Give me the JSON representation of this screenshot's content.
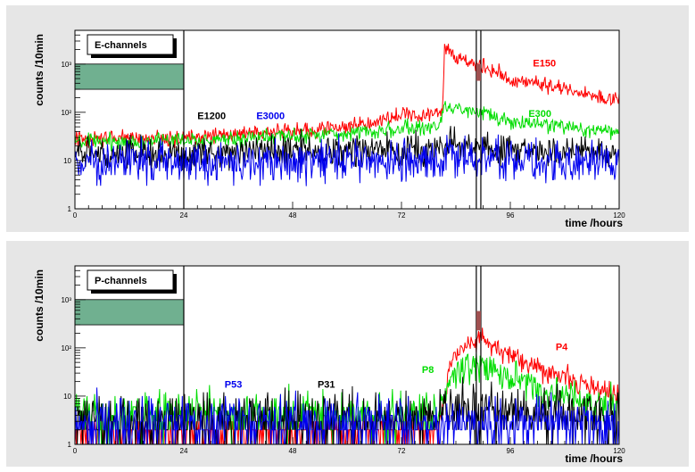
{
  "chart_data": [
    {
      "type": "line",
      "title": "E-channels",
      "xlabel": "time /hours",
      "ylabel": "counts /10min",
      "yscale": "log",
      "xlim": [
        0,
        120
      ],
      "ylim": [
        1,
        5000
      ],
      "xticks": [
        "0",
        "24",
        "48",
        "72",
        "96",
        "120"
      ],
      "yticks": [
        "1",
        "10",
        "10²",
        "10³"
      ],
      "markers": [
        24,
        88.5,
        89.5
      ],
      "shaded_box": {
        "x": [
          0,
          24
        ],
        "y": [
          300,
          1000
        ],
        "color": "#70b090"
      },
      "marker_box": {
        "x": [
          88.5,
          89.5
        ],
        "y": [
          450,
          1000
        ],
        "color": "#a05050"
      },
      "series": [
        {
          "name": "E150",
          "color": "#ff0000",
          "base": [
            [
              0,
              28
            ],
            [
              24,
              30
            ],
            [
              48,
              40
            ],
            [
              60,
              50
            ],
            [
              70,
              80
            ],
            [
              78,
              95
            ],
            [
              81,
              100
            ],
            [
              81.5,
              2200
            ],
            [
              84,
              1500
            ],
            [
              88,
              1000
            ],
            [
              93,
              700
            ],
            [
              96,
              450
            ],
            [
              102,
              400
            ],
            [
              108,
              320
            ],
            [
              114,
              220
            ],
            [
              120,
              180
            ]
          ],
          "noise": 0.08
        },
        {
          "name": "E300",
          "color": "#00dd00",
          "base": [
            [
              0,
              24
            ],
            [
              24,
              26
            ],
            [
              48,
              32
            ],
            [
              60,
              38
            ],
            [
              72,
              45
            ],
            [
              80,
              50
            ],
            [
              81.5,
              140
            ],
            [
              86,
              110
            ],
            [
              90,
              95
            ],
            [
              96,
              60
            ],
            [
              108,
              50
            ],
            [
              120,
              38
            ]
          ],
          "noise": 0.08
        },
        {
          "name": "E1200",
          "color": "#000000",
          "base": [
            [
              0,
              14
            ],
            [
              24,
              14
            ],
            [
              48,
              16
            ],
            [
              72,
              16
            ],
            [
              81,
              16
            ],
            [
              82,
              25
            ],
            [
              86,
              20
            ],
            [
              96,
              16
            ],
            [
              120,
              14
            ]
          ],
          "noise": 0.16
        },
        {
          "name": "E3000",
          "color": "#0000ee",
          "base": [
            [
              0,
              9
            ],
            [
              24,
              9
            ],
            [
              48,
              10
            ],
            [
              72,
              10
            ],
            [
              81,
              10
            ],
            [
              82,
              13
            ],
            [
              90,
              11
            ],
            [
              120,
              9
            ]
          ],
          "noise": 0.22
        }
      ],
      "labels": [
        {
          "text": "E150",
          "color": "#ff0000",
          "x": 101,
          "y": 900
        },
        {
          "text": "E300",
          "color": "#00dd00",
          "x": 100,
          "y": 80
        },
        {
          "text": "E1200",
          "color": "#000000",
          "x": 27,
          "y": 72
        },
        {
          "text": "E3000",
          "color": "#0000ee",
          "x": 40,
          "y": 72
        }
      ]
    },
    {
      "type": "line",
      "title": "P-channels",
      "xlabel": "time /hours",
      "ylabel": "counts /10min",
      "yscale": "log",
      "xlim": [
        0,
        120
      ],
      "ylim": [
        1,
        5000
      ],
      "xticks": [
        "0",
        "24",
        "48",
        "72",
        "96",
        "120"
      ],
      "yticks": [
        "1",
        "10",
        "10²",
        "10³"
      ],
      "markers": [
        24,
        88.5,
        89.5
      ],
      "shaded_box": {
        "x": [
          0,
          24
        ],
        "y": [
          300,
          1000
        ],
        "color": "#70b090"
      },
      "marker_box": {
        "x": [
          88.5,
          89.5
        ],
        "y": [
          230,
          580
        ],
        "color": "#a05050"
      },
      "series": [
        {
          "name": "P4",
          "color": "#ff0000",
          "base": [
            [
              0,
              1.5
            ],
            [
              80,
              2
            ],
            [
              81.5,
              8
            ],
            [
              83,
              60
            ],
            [
              86,
              100
            ],
            [
              88,
              130
            ],
            [
              90,
              150
            ],
            [
              94,
              90
            ],
            [
              100,
              45
            ],
            [
              108,
              25
            ],
            [
              114,
              15
            ],
            [
              120,
              10
            ]
          ],
          "noise": 0.11
        },
        {
          "name": "P8",
          "color": "#00dd00",
          "base": [
            [
              0,
              4
            ],
            [
              80,
              4
            ],
            [
              81.5,
              12
            ],
            [
              84,
              30
            ],
            [
              88,
              50
            ],
            [
              90,
              45
            ],
            [
              96,
              25
            ],
            [
              102,
              15
            ],
            [
              110,
              8
            ],
            [
              120,
              5
            ]
          ],
          "noise": 0.18
        },
        {
          "name": "P31",
          "color": "#000000",
          "base": [
            [
              0,
              3
            ],
            [
              80,
              3
            ],
            [
              81.5,
              6
            ],
            [
              86,
              5
            ],
            [
              120,
              3
            ]
          ],
          "noise": 0.22
        },
        {
          "name": "P53",
          "color": "#0000ee",
          "base": [
            [
              0,
              2.5
            ],
            [
              120,
              2.5
            ]
          ],
          "noise": 0.22
        }
      ],
      "labels": [
        {
          "text": "P4",
          "color": "#ff0000",
          "x": 106,
          "y": 90
        },
        {
          "text": "P8",
          "color": "#00dd00",
          "x": 76.5,
          "y": 30
        },
        {
          "text": "P31",
          "color": "#000000",
          "x": 53.5,
          "y": 15
        },
        {
          "text": "P53",
          "color": "#0000ee",
          "x": 33,
          "y": 15
        }
      ]
    }
  ]
}
